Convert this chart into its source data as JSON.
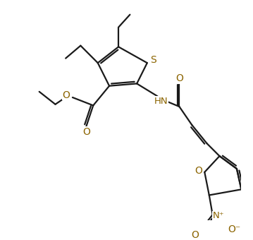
{
  "bg_color": "#ffffff",
  "line_color": "#1a1a1a",
  "heteroatom_color": "#8B6400",
  "line_width": 1.6,
  "figsize": [
    3.59,
    3.4
  ],
  "dpi": 100,
  "xlim": [
    0,
    10
  ],
  "ylim": [
    0,
    9.5
  ]
}
